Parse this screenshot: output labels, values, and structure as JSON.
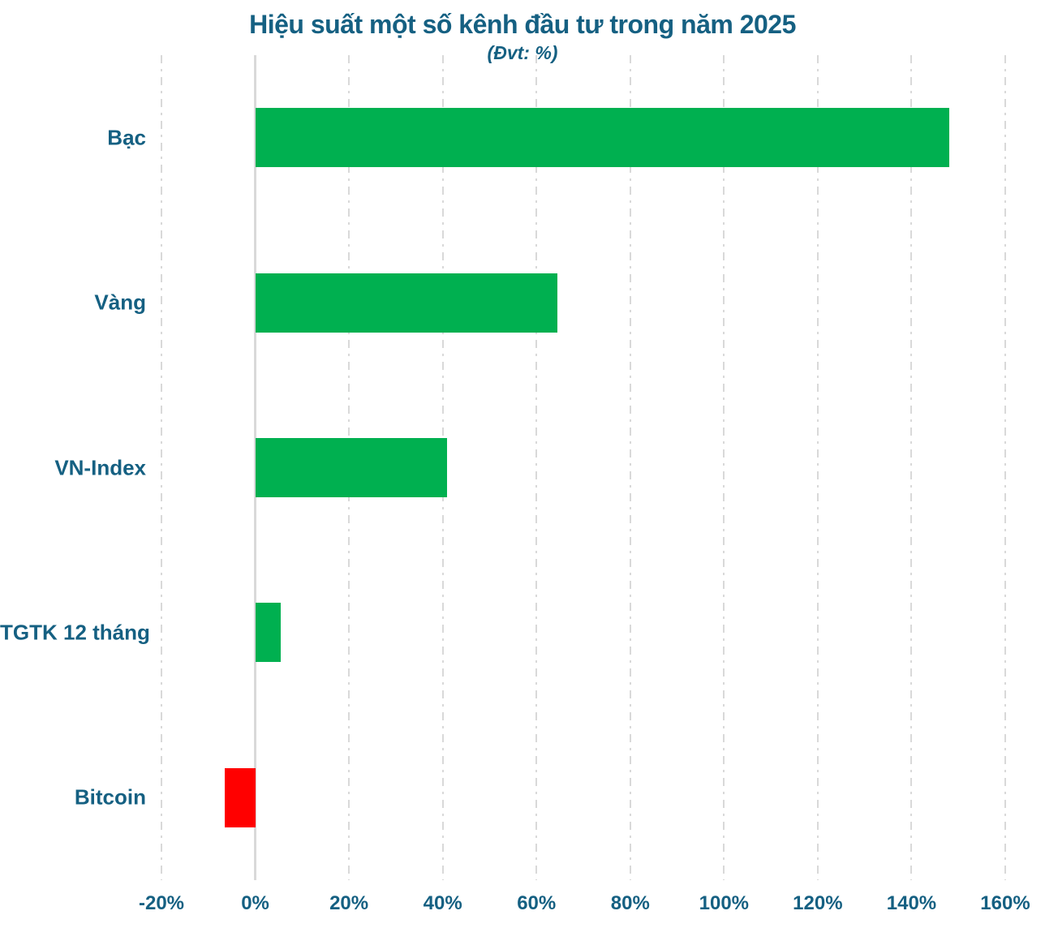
{
  "title": "Hiệu suất một số kênh đầu tư trong năm 2025",
  "subtitle": "(Đvt: %)",
  "chart_data": {
    "type": "bar",
    "orientation": "horizontal",
    "title": "Hiệu suất một số kênh đầu tư trong năm 2025",
    "subtitle": "(Đvt: %)",
    "categories": [
      "Bạc",
      "Vàng",
      "VN-Index",
      "TGTK 12 tháng",
      "Bitcoin"
    ],
    "values": [
      148,
      64.5,
      41,
      5.5,
      -6.5
    ],
    "xlabel": "",
    "ylabel": "",
    "xlim": [
      -20,
      160
    ],
    "xtick_step": 20,
    "xtick_labels": [
      "-20%",
      "0%",
      "20%",
      "40%",
      "60%",
      "80%",
      "100%",
      "120%",
      "140%",
      "160%"
    ],
    "grid": "vertical-dash-dot",
    "legend": "none",
    "colors": {
      "positive": "#00B050",
      "negative": "#FF0000",
      "text": "#156082",
      "gridline": "#D9D9D9",
      "axis": "#D9D9D9"
    }
  }
}
